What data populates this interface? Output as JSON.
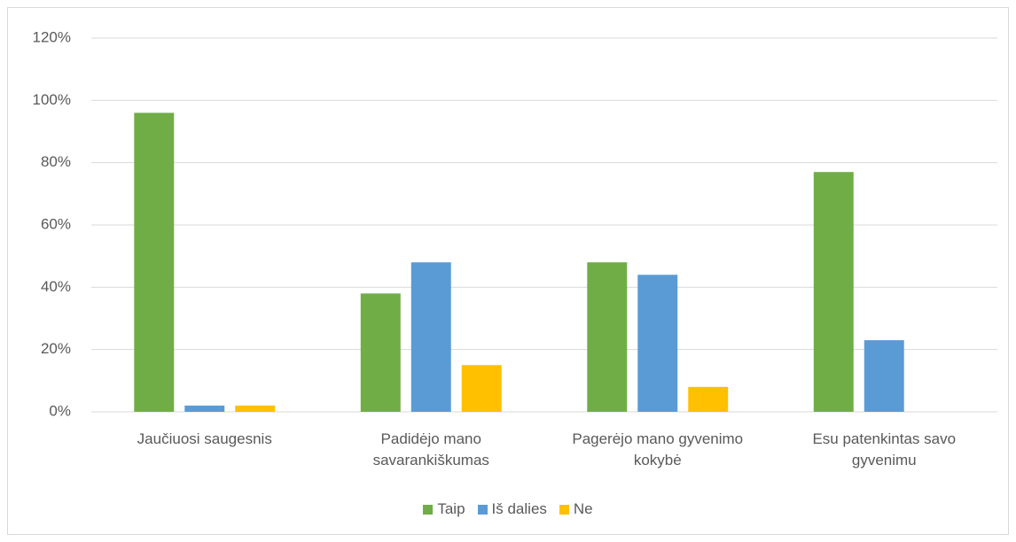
{
  "chart_data": {
    "type": "bar",
    "categories": [
      "Jaučiuosi saugesnis",
      "Padidėjo mano savarankiškumas",
      "Pagerėjo mano gyvenimo kokybė",
      "Esu patenkintas savo gyvenimu"
    ],
    "series": [
      {
        "name": "Taip",
        "color": "#70ad47",
        "values": [
          96,
          38,
          48,
          77
        ]
      },
      {
        "name": "Iš dalies",
        "color": "#5b9bd5",
        "values": [
          2,
          48,
          44,
          23
        ]
      },
      {
        "name": "Ne",
        "color": "#ffc000",
        "values": [
          2,
          15,
          8,
          0
        ]
      }
    ],
    "ylim": [
      0,
      120
    ],
    "yticks": [
      {
        "value": 0,
        "label": "0%"
      },
      {
        "value": 20,
        "label": "20%"
      },
      {
        "value": 40,
        "label": "40%"
      },
      {
        "value": 60,
        "label": "60%"
      },
      {
        "value": 80,
        "label": "80%"
      },
      {
        "value": 100,
        "label": "100%"
      },
      {
        "value": 120,
        "label": "120%"
      }
    ],
    "grid": true,
    "legend": "bottom"
  }
}
